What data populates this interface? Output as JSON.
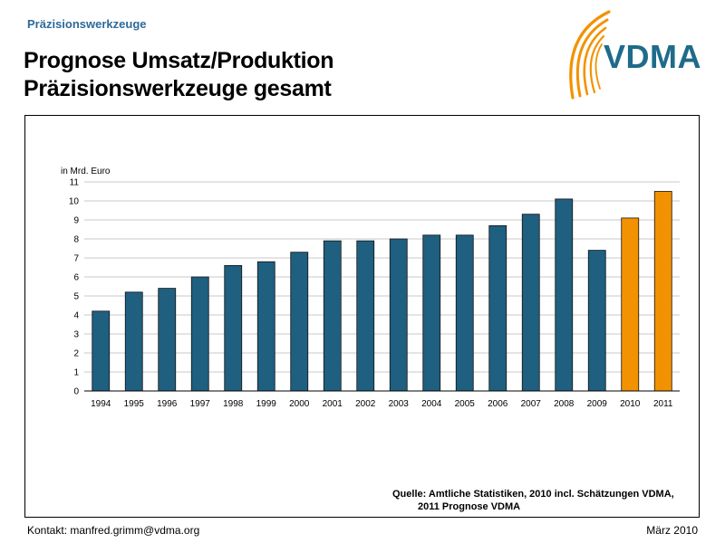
{
  "header": {
    "section_label": "Präzisionswerkzeuge",
    "title_line1": "Prognose Umsatz/Produktion",
    "title_line2": "Präzisionswerkzeuge gesamt"
  },
  "logo": {
    "text": "VDMA",
    "arc_color": "#f39200",
    "text_color": "#1e6b8a"
  },
  "chart_data": {
    "type": "bar",
    "ylabel": "in Mrd. Euro",
    "ylim": [
      0,
      11
    ],
    "yticks": [
      0,
      1,
      2,
      3,
      4,
      5,
      6,
      7,
      8,
      9,
      10,
      11
    ],
    "grid": true,
    "categories": [
      "1994",
      "1995",
      "1996",
      "1997",
      "1998",
      "1999",
      "2000",
      "2001",
      "2002",
      "2003",
      "2004",
      "2005",
      "2006",
      "2007",
      "2008",
      "2009",
      "2010",
      "2011"
    ],
    "values": [
      4.2,
      5.2,
      5.4,
      6.0,
      6.6,
      6.8,
      7.3,
      7.9,
      7.9,
      8.0,
      8.2,
      8.2,
      8.7,
      9.3,
      10.1,
      7.4,
      9.1,
      10.5
    ],
    "bar_colors": [
      "#1f5f80",
      "#1f5f80",
      "#1f5f80",
      "#1f5f80",
      "#1f5f80",
      "#1f5f80",
      "#1f5f80",
      "#1f5f80",
      "#1f5f80",
      "#1f5f80",
      "#1f5f80",
      "#1f5f80",
      "#1f5f80",
      "#1f5f80",
      "#1f5f80",
      "#1f5f80",
      "#f39200",
      "#f39200"
    ]
  },
  "source": {
    "line1": "Quelle: Amtliche Statistiken, 2010 incl. Schätzungen VDMA,",
    "line2": "2011 Prognose VDMA"
  },
  "footer": {
    "contact": "Kontakt: manfred.grimm@vdma.org",
    "date": "März 2010"
  }
}
